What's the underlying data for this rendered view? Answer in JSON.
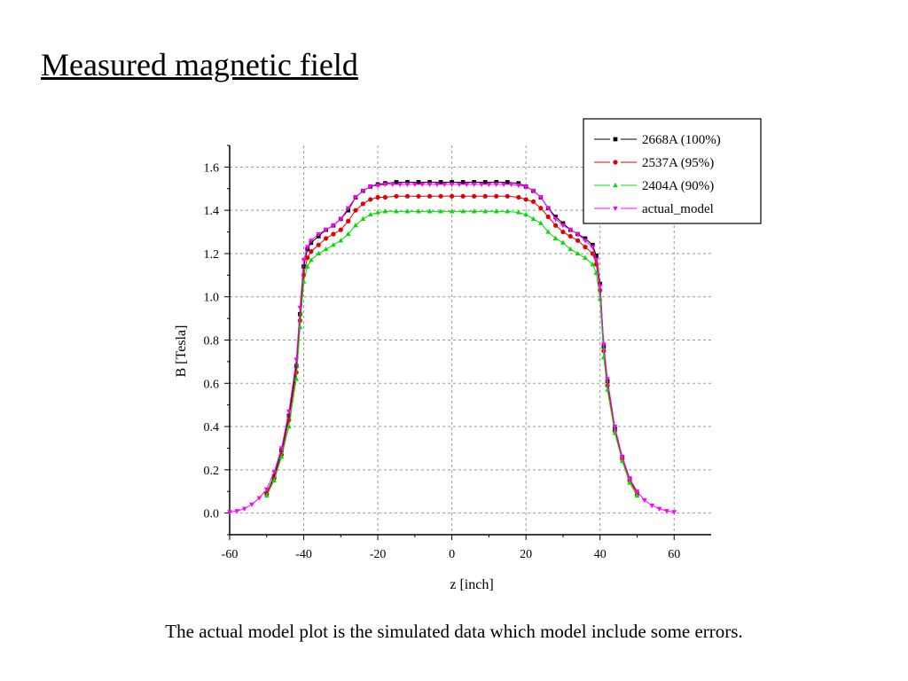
{
  "slide": {
    "title": "Measured magnetic field",
    "caption": "The actual model plot is the simulated data which model include some errors."
  },
  "chart_data": {
    "type": "line",
    "title": "",
    "xlabel": "z [inch]",
    "ylabel": "B [Tesla]",
    "xlim": [
      -60,
      70
    ],
    "ylim": [
      -0.1,
      1.7
    ],
    "xticks": [
      -60,
      -40,
      -20,
      0,
      20,
      40,
      60
    ],
    "xtick_labels": [
      "-60",
      "-40",
      "-20",
      "0",
      "20",
      "40",
      "60"
    ],
    "yticks": [
      0.0,
      0.2,
      0.4,
      0.6,
      0.8,
      1.0,
      1.2,
      1.4,
      1.6
    ],
    "ytick_labels": [
      "0.0",
      "0.2",
      "0.4",
      "0.6",
      "0.8",
      "1.0",
      "1.2",
      "1.4",
      "1.6"
    ],
    "grid": true,
    "legend_position": "top-right",
    "series": [
      {
        "name": "2668A (100%)",
        "color": "#000000",
        "marker": "square",
        "x": [
          -50,
          -48,
          -46,
          -44,
          -42,
          -41,
          -40,
          -39,
          -38,
          -36,
          -34,
          -32,
          -30,
          -28,
          -26,
          -24,
          -22,
          -20,
          -18,
          -15,
          -12,
          -9,
          -6,
          -3,
          0,
          3,
          6,
          9,
          12,
          15,
          18,
          20,
          22,
          24,
          26,
          28,
          30,
          32,
          34,
          36,
          38,
          39,
          40,
          41,
          42,
          44,
          46,
          48,
          50
        ],
        "y": [
          0.09,
          0.17,
          0.29,
          0.45,
          0.68,
          0.92,
          1.14,
          1.22,
          1.25,
          1.28,
          1.31,
          1.33,
          1.36,
          1.4,
          1.46,
          1.49,
          1.51,
          1.52,
          1.525,
          1.53,
          1.53,
          1.53,
          1.53,
          1.53,
          1.53,
          1.53,
          1.53,
          1.53,
          1.53,
          1.53,
          1.525,
          1.51,
          1.49,
          1.46,
          1.41,
          1.37,
          1.34,
          1.31,
          1.29,
          1.27,
          1.24,
          1.19,
          1.06,
          0.77,
          0.61,
          0.39,
          0.26,
          0.16,
          0.09
        ]
      },
      {
        "name": "2537A (95%)",
        "color": "#e00000",
        "marker": "circle",
        "x": [
          -50,
          -48,
          -46,
          -44,
          -42,
          -41,
          -40,
          -39,
          -38,
          -36,
          -34,
          -32,
          -30,
          -28,
          -26,
          -24,
          -22,
          -20,
          -18,
          -15,
          -12,
          -9,
          -6,
          -3,
          0,
          3,
          6,
          9,
          12,
          15,
          18,
          20,
          22,
          24,
          26,
          28,
          30,
          32,
          34,
          36,
          38,
          39,
          40,
          41,
          42,
          44,
          46,
          48,
          50
        ],
        "y": [
          0.09,
          0.16,
          0.27,
          0.43,
          0.65,
          0.89,
          1.1,
          1.18,
          1.21,
          1.24,
          1.27,
          1.29,
          1.31,
          1.35,
          1.4,
          1.43,
          1.45,
          1.46,
          1.46,
          1.465,
          1.465,
          1.465,
          1.465,
          1.465,
          1.465,
          1.465,
          1.465,
          1.465,
          1.465,
          1.465,
          1.46,
          1.45,
          1.44,
          1.41,
          1.37,
          1.33,
          1.3,
          1.28,
          1.26,
          1.23,
          1.2,
          1.15,
          1.03,
          0.75,
          0.59,
          0.38,
          0.25,
          0.15,
          0.09
        ]
      },
      {
        "name": "2404A (90%)",
        "color": "#00dd00",
        "marker": "triangle-up",
        "x": [
          -50,
          -48,
          -46,
          -44,
          -42,
          -41,
          -40,
          -39,
          -38,
          -36,
          -34,
          -32,
          -30,
          -28,
          -26,
          -24,
          -22,
          -20,
          -18,
          -15,
          -12,
          -9,
          -6,
          -3,
          0,
          3,
          6,
          9,
          12,
          15,
          18,
          20,
          22,
          24,
          26,
          28,
          30,
          32,
          34,
          36,
          38,
          39,
          40,
          41,
          42,
          44,
          46,
          48,
          50
        ],
        "y": [
          0.08,
          0.15,
          0.26,
          0.4,
          0.62,
          0.86,
          1.07,
          1.14,
          1.17,
          1.2,
          1.22,
          1.24,
          1.26,
          1.29,
          1.33,
          1.36,
          1.38,
          1.39,
          1.395,
          1.395,
          1.395,
          1.395,
          1.395,
          1.395,
          1.395,
          1.395,
          1.395,
          1.395,
          1.395,
          1.395,
          1.39,
          1.38,
          1.36,
          1.34,
          1.3,
          1.27,
          1.25,
          1.22,
          1.2,
          1.18,
          1.15,
          1.11,
          0.99,
          0.72,
          0.57,
          0.37,
          0.24,
          0.14,
          0.08
        ]
      },
      {
        "name": "actual_model",
        "color": "#ff00ff",
        "marker": "triangle-down",
        "x": [
          -60,
          -58,
          -56,
          -54,
          -52,
          -50,
          -48,
          -46,
          -44,
          -42,
          -41,
          -40,
          -39,
          -38,
          -36,
          -34,
          -32,
          -30,
          -28,
          -26,
          -24,
          -22,
          -20,
          -18,
          -16,
          -14,
          -12,
          -10,
          -8,
          -6,
          -4,
          -2,
          0,
          2,
          4,
          6,
          8,
          10,
          12,
          14,
          16,
          18,
          20,
          22,
          24,
          26,
          28,
          30,
          32,
          34,
          36,
          38,
          39,
          40,
          41,
          42,
          44,
          46,
          48,
          50,
          52,
          54,
          56,
          58,
          60
        ],
        "y": [
          0.005,
          0.01,
          0.02,
          0.04,
          0.07,
          0.11,
          0.19,
          0.3,
          0.47,
          0.71,
          0.95,
          1.17,
          1.23,
          1.26,
          1.29,
          1.31,
          1.33,
          1.36,
          1.41,
          1.46,
          1.49,
          1.51,
          1.515,
          1.52,
          1.52,
          1.52,
          1.52,
          1.52,
          1.52,
          1.52,
          1.52,
          1.52,
          1.52,
          1.52,
          1.52,
          1.52,
          1.52,
          1.52,
          1.52,
          1.52,
          1.52,
          1.515,
          1.51,
          1.49,
          1.46,
          1.41,
          1.36,
          1.33,
          1.31,
          1.29,
          1.26,
          1.23,
          1.17,
          1.05,
          0.78,
          0.62,
          0.4,
          0.26,
          0.16,
          0.1,
          0.06,
          0.035,
          0.02,
          0.01,
          0.005
        ]
      }
    ]
  }
}
